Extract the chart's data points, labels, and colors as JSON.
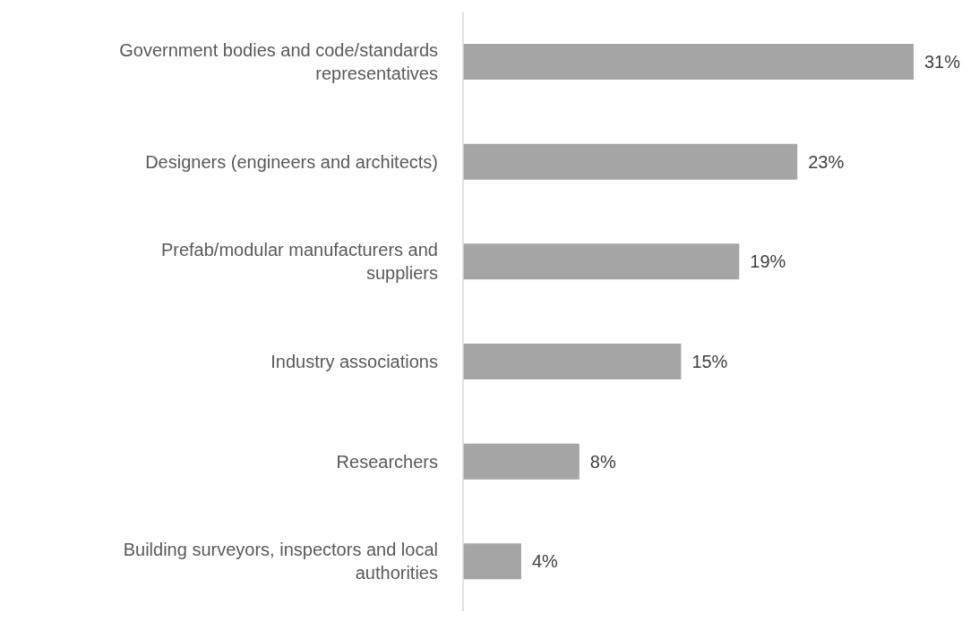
{
  "chart_data": {
    "type": "bar",
    "orientation": "horizontal",
    "categories": [
      "Government bodies and code/standards representatives",
      "Designers (engineers and architects)",
      "Prefab/modular manufacturers and suppliers",
      "Industry associations",
      "Researchers",
      "Building surveyors, inspectors and local authorities"
    ],
    "values": [
      31,
      23,
      19,
      15,
      8,
      4
    ],
    "value_labels": [
      "31%",
      "23%",
      "19%",
      "15%",
      "8%",
      "4%"
    ],
    "color": "#a5a5a5"
  }
}
